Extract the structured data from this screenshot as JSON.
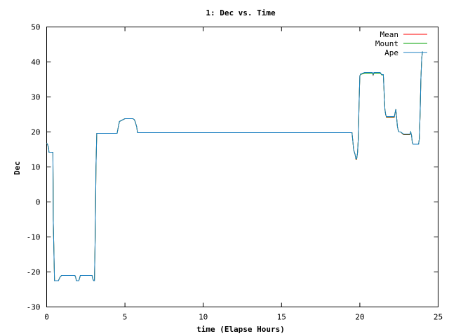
{
  "chart_data": {
    "type": "line",
    "title": "1: Dec vs. Time",
    "xlabel": "time (Elapse Hours)",
    "ylabel": "Dec",
    "xlim": [
      0,
      25
    ],
    "ylim": [
      -30,
      50
    ],
    "xticks": [
      "0",
      "5",
      "10",
      "15",
      "20",
      "25"
    ],
    "yticks": [
      "-30",
      "-20",
      "-10",
      "0",
      "10",
      "20",
      "30",
      "40",
      "50"
    ],
    "grid": false,
    "legend_position": "top-right",
    "series": [
      {
        "name": "Mean",
        "color": "#ff0000",
        "x": [
          0.0,
          0.05,
          0.12,
          0.15,
          0.22,
          0.4,
          0.41,
          0.42,
          0.5,
          0.55,
          0.6,
          0.75,
          0.85,
          0.95,
          1.3,
          1.5,
          1.8,
          1.85,
          1.9,
          2.05,
          2.1,
          2.15,
          2.25,
          2.3,
          2.7,
          2.9,
          2.95,
          3.0,
          3.05,
          3.1,
          3.15,
          3.2,
          3.5,
          4.0,
          4.5,
          4.6,
          4.65,
          5.0,
          5.5,
          5.6,
          5.65,
          5.75,
          5.8,
          6.0,
          8.0,
          10.0,
          12.0,
          14.0,
          16.0,
          18.0,
          19.5,
          19.55,
          19.6,
          19.7,
          19.75,
          19.8,
          19.85,
          19.9,
          19.95,
          20.0,
          20.05,
          20.1,
          20.3,
          20.5,
          20.8,
          20.85,
          20.9,
          21.3,
          21.35,
          21.4,
          21.5,
          21.6,
          21.65,
          21.7,
          21.8,
          21.85,
          21.9,
          22.2,
          22.3,
          22.35,
          22.4,
          22.45,
          22.5,
          22.6,
          22.8,
          22.9,
          23.2,
          23.25,
          23.3,
          23.35,
          23.4,
          23.5,
          23.6,
          23.75,
          23.8,
          23.85,
          23.9,
          23.95,
          24.0
        ],
        "y": [
          16.8,
          16.5,
          15.5,
          14.2,
          14.2,
          14.2,
          5.0,
          -5.0,
          -22.5,
          -22.5,
          -22.5,
          -22.5,
          -21.5,
          -21.0,
          -21.0,
          -21.0,
          -21.0,
          -21.5,
          -22.5,
          -22.5,
          -21.8,
          -21.0,
          -21.0,
          -21.0,
          -21.0,
          -21.0,
          -22.0,
          -22.5,
          -22.5,
          -10.0,
          10.0,
          19.6,
          19.6,
          19.6,
          19.6,
          22.0,
          23.0,
          23.8,
          23.8,
          23.5,
          23.0,
          21.5,
          19.8,
          19.8,
          19.8,
          19.8,
          19.8,
          19.8,
          19.8,
          19.8,
          19.8,
          17.5,
          15.0,
          13.5,
          12.2,
          12.2,
          14.0,
          18.0,
          28.0,
          36.0,
          36.5,
          36.5,
          36.8,
          36.8,
          36.8,
          36.2,
          36.8,
          36.8,
          36.6,
          36.3,
          36.3,
          26.5,
          25.0,
          24.2,
          24.2,
          24.2,
          24.2,
          24.2,
          26.5,
          24.0,
          21.5,
          20.5,
          20.0,
          20.0,
          19.2,
          19.2,
          19.2,
          20.0,
          19.0,
          17.0,
          16.5,
          16.5,
          16.5,
          16.5,
          18.0,
          25.0,
          35.0,
          41.0,
          43.0
        ]
      },
      {
        "name": "Mount",
        "color": "#00a000",
        "x": [
          0.0,
          0.05,
          0.12,
          0.15,
          0.22,
          0.4,
          0.41,
          0.42,
          0.5,
          0.55,
          0.6,
          0.75,
          0.85,
          0.95,
          1.3,
          1.5,
          1.8,
          1.85,
          1.9,
          2.05,
          2.1,
          2.15,
          2.25,
          2.3,
          2.7,
          2.9,
          2.95,
          3.0,
          3.05,
          3.1,
          3.15,
          3.2,
          3.5,
          4.0,
          4.5,
          4.6,
          4.65,
          5.0,
          5.5,
          5.6,
          5.65,
          5.75,
          5.8,
          6.0,
          8.0,
          10.0,
          12.0,
          14.0,
          16.0,
          18.0,
          19.5,
          19.55,
          19.6,
          19.7,
          19.75,
          19.8,
          19.85,
          19.9,
          19.95,
          20.0,
          20.05,
          20.1,
          20.3,
          20.5,
          20.8,
          20.85,
          20.9,
          21.3,
          21.35,
          21.4,
          21.5,
          21.6,
          21.65,
          21.7,
          21.8,
          21.85,
          21.9,
          22.2,
          22.3,
          22.35,
          22.4,
          22.45,
          22.5,
          22.6,
          22.8,
          22.9,
          23.2,
          23.25,
          23.3,
          23.35,
          23.4,
          23.5,
          23.6,
          23.75,
          23.8,
          23.85,
          23.9,
          23.95,
          24.0
        ],
        "y": [
          16.8,
          16.5,
          15.5,
          14.2,
          14.2,
          14.2,
          5.0,
          -5.0,
          -22.5,
          -22.5,
          -22.5,
          -22.5,
          -21.5,
          -21.0,
          -21.0,
          -21.0,
          -21.0,
          -21.5,
          -22.5,
          -22.5,
          -21.8,
          -21.0,
          -21.0,
          -21.0,
          -21.0,
          -21.0,
          -22.0,
          -22.5,
          -22.5,
          -10.0,
          10.0,
          19.6,
          19.6,
          19.6,
          19.6,
          22.0,
          23.0,
          23.8,
          23.8,
          23.5,
          23.0,
          21.5,
          19.8,
          19.8,
          19.8,
          19.8,
          19.8,
          19.8,
          19.8,
          19.8,
          19.8,
          17.5,
          15.0,
          13.5,
          12.3,
          12.3,
          14.0,
          18.0,
          28.0,
          36.0,
          36.5,
          36.5,
          36.8,
          36.8,
          36.8,
          36.3,
          36.8,
          36.8,
          36.6,
          36.3,
          36.3,
          26.5,
          25.0,
          24.3,
          24.3,
          24.3,
          24.3,
          24.3,
          26.5,
          24.0,
          21.5,
          20.5,
          20.0,
          20.0,
          19.3,
          19.3,
          19.3,
          20.0,
          19.0,
          17.0,
          16.5,
          16.5,
          16.5,
          16.5,
          18.0,
          25.0,
          35.0,
          41.0,
          43.0
        ]
      },
      {
        "name": "Ape",
        "color": "#1a7fc1",
        "x": [
          0.0,
          0.05,
          0.12,
          0.15,
          0.22,
          0.4,
          0.41,
          0.42,
          0.5,
          0.55,
          0.6,
          0.75,
          0.85,
          0.95,
          1.3,
          1.5,
          1.8,
          1.85,
          1.9,
          2.05,
          2.1,
          2.15,
          2.25,
          2.3,
          2.7,
          2.9,
          2.95,
          3.0,
          3.05,
          3.1,
          3.15,
          3.2,
          3.5,
          4.0,
          4.5,
          4.6,
          4.65,
          5.0,
          5.5,
          5.6,
          5.65,
          5.75,
          5.8,
          6.0,
          8.0,
          10.0,
          12.0,
          14.0,
          16.0,
          18.0,
          19.5,
          19.55,
          19.6,
          19.7,
          19.75,
          19.8,
          19.85,
          19.9,
          19.95,
          20.0,
          20.05,
          20.1,
          20.3,
          20.5,
          20.8,
          20.85,
          20.9,
          21.3,
          21.35,
          21.4,
          21.5,
          21.6,
          21.65,
          21.7,
          21.8,
          21.85,
          21.9,
          22.2,
          22.3,
          22.35,
          22.4,
          22.45,
          22.5,
          22.6,
          22.8,
          22.9,
          23.2,
          23.25,
          23.3,
          23.35,
          23.4,
          23.5,
          23.6,
          23.75,
          23.8,
          23.85,
          23.9,
          23.95,
          24.0
        ],
        "y": [
          16.8,
          16.5,
          15.5,
          14.2,
          14.2,
          14.2,
          5.0,
          -5.0,
          -22.5,
          -22.5,
          -22.5,
          -22.5,
          -21.5,
          -21.0,
          -21.0,
          -21.0,
          -21.0,
          -21.5,
          -22.5,
          -22.5,
          -21.8,
          -21.0,
          -21.0,
          -21.0,
          -21.0,
          -21.0,
          -22.0,
          -22.5,
          -22.5,
          -10.0,
          10.0,
          19.6,
          19.6,
          19.6,
          19.6,
          22.0,
          23.0,
          23.8,
          23.8,
          23.5,
          23.0,
          21.5,
          19.8,
          19.8,
          19.8,
          19.8,
          19.8,
          19.8,
          19.8,
          19.8,
          19.8,
          17.5,
          15.0,
          13.5,
          12.4,
          12.4,
          14.0,
          18.0,
          28.0,
          36.0,
          36.6,
          36.6,
          37.0,
          37.0,
          37.0,
          36.4,
          37.0,
          37.0,
          36.7,
          36.4,
          36.4,
          26.5,
          25.0,
          24.4,
          24.4,
          24.4,
          24.4,
          24.4,
          26.5,
          24.0,
          21.5,
          20.5,
          20.0,
          20.0,
          19.4,
          19.4,
          19.4,
          20.0,
          19.0,
          17.0,
          16.5,
          16.5,
          16.5,
          16.5,
          18.0,
          25.0,
          35.0,
          41.0,
          43.0
        ]
      }
    ]
  }
}
